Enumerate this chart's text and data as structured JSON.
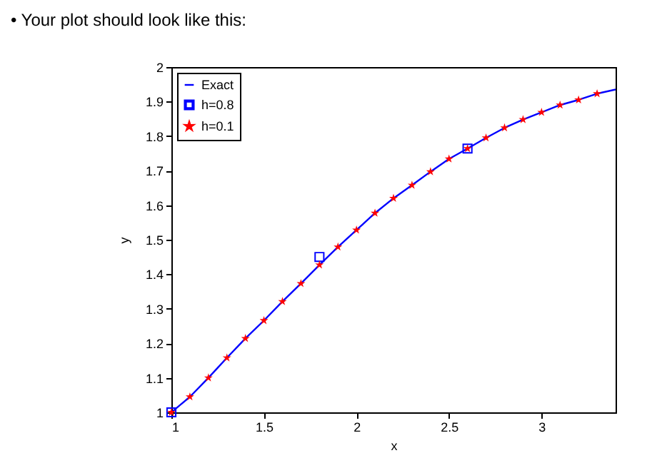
{
  "chart_data": {
    "type": "line",
    "title": "• Your plot should look like this:",
    "xlabel": "x",
    "ylabel": "y",
    "xlim": [
      1,
      3.4
    ],
    "ylim": [
      1,
      2
    ],
    "xticks": [
      1,
      1.5,
      2,
      2.5,
      3
    ],
    "yticks": [
      1,
      1.1,
      1.2,
      1.3,
      1.4,
      1.5,
      1.6,
      1.7,
      1.8,
      1.9,
      2
    ],
    "grid": false,
    "legend": "top left",
    "series": [
      {
        "name": "Exact",
        "color": "#0000ff",
        "line_style": "solid",
        "marker": "none",
        "x": [
          1,
          1.1,
          1.2,
          1.3,
          1.4,
          1.5,
          1.6,
          1.7,
          1.8,
          1.9,
          2,
          2.1,
          2.2,
          2.3,
          2.4,
          2.5,
          2.6,
          2.7,
          2.8,
          2.9,
          3,
          3.1,
          3.2,
          3.3,
          3.4
        ],
        "values": [
          1,
          1.045,
          1.1,
          1.158,
          1.214,
          1.266,
          1.321,
          1.373,
          1.427,
          1.479,
          1.528,
          1.577,
          1.62,
          1.658,
          1.697,
          1.734,
          1.764,
          1.795,
          1.824,
          1.848,
          1.869,
          1.89,
          1.905,
          1.923,
          1.935
        ]
      },
      {
        "name": "h=0.8",
        "type": "scatter",
        "color": "#0000ff",
        "marker": "square",
        "x": [
          1,
          1.8,
          2.6
        ],
        "values": [
          1,
          1.45,
          1.764
        ]
      },
      {
        "name": "h=0.1",
        "type": "scatter",
        "color": "#ff0000",
        "marker": "star",
        "x": [
          1,
          1.1,
          1.2,
          1.3,
          1.4,
          1.5,
          1.6,
          1.7,
          1.8,
          1.9,
          2,
          2.1,
          2.2,
          2.3,
          2.4,
          2.5,
          2.6,
          2.7,
          2.8,
          2.9,
          3,
          3.1,
          3.2,
          3.3
        ],
        "values": [
          1,
          1.045,
          1.1,
          1.158,
          1.214,
          1.266,
          1.321,
          1.373,
          1.427,
          1.479,
          1.528,
          1.577,
          1.62,
          1.658,
          1.697,
          1.734,
          1.764,
          1.795,
          1.824,
          1.848,
          1.869,
          1.89,
          1.905,
          1.923
        ]
      }
    ]
  }
}
